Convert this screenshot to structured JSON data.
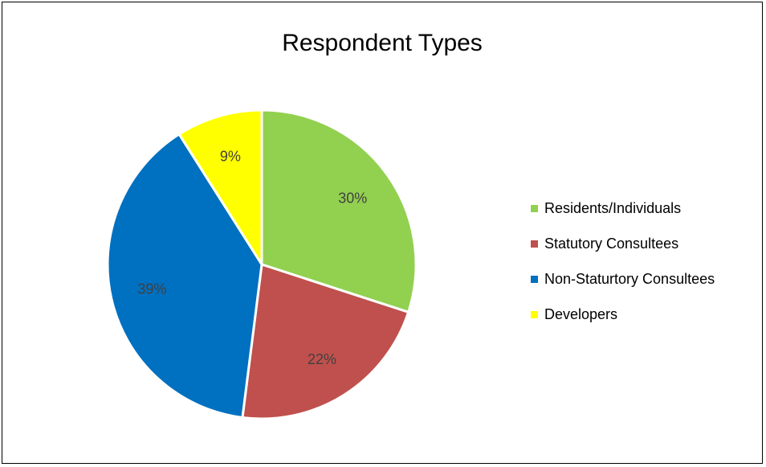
{
  "chart_data": {
    "type": "pie",
    "title": "Respondent Types",
    "categories": [
      "Residents/Individuals",
      "Statutory Consultees",
      "Non-Staturtory Consultees",
      "Developers"
    ],
    "values": [
      30,
      22,
      39,
      9
    ],
    "data_labels": [
      "30%",
      "22%",
      "39%",
      "9%"
    ],
    "colors": [
      "#92D050",
      "#C0504D",
      "#0070C0",
      "#FFFF00"
    ],
    "legend_position": "right",
    "start_angle": "12 o'clock",
    "direction": "clockwise"
  }
}
